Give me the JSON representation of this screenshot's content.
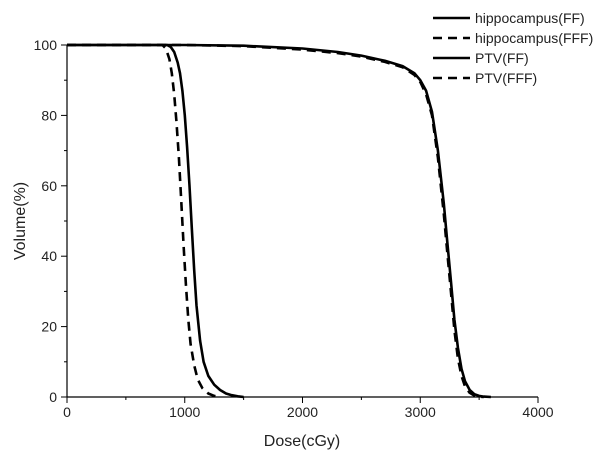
{
  "chart_data": {
    "type": "line",
    "title": "",
    "xlabel": "Dose(cGy)",
    "ylabel": "Volume(%)",
    "xlim": [
      0,
      4000
    ],
    "ylim": [
      0,
      100
    ],
    "xticks": [
      0,
      1000,
      2000,
      3000,
      4000
    ],
    "yticks": [
      0,
      20,
      40,
      60,
      80,
      100
    ],
    "x_tick_labels": [
      "0",
      "1000",
      "2000",
      "3000",
      "4000"
    ],
    "y_tick_labels": [
      "0",
      "20",
      "40",
      "60",
      "80",
      "100"
    ],
    "grid": false,
    "legend_position": "top-right-outside",
    "series": [
      {
        "name": "hippocampus(FF)",
        "dash": "solid",
        "x": [
          0,
          850,
          880,
          910,
          940,
          960,
          980,
          1000,
          1020,
          1040,
          1060,
          1080,
          1100,
          1130,
          1160,
          1200,
          1250,
          1300,
          1350,
          1400,
          1450,
          1500
        ],
        "y": [
          100,
          100,
          99.5,
          98,
          95,
          92,
          87,
          80,
          71,
          60,
          48,
          36,
          26,
          16,
          10,
          6,
          3.5,
          2,
          1,
          0.5,
          0.2,
          0
        ]
      },
      {
        "name": "hippocampus(FFF)",
        "dash": "dashed",
        "x": [
          0,
          810,
          840,
          870,
          890,
          910,
          930,
          950,
          970,
          990,
          1010,
          1030,
          1050,
          1080,
          1110,
          1150,
          1200,
          1250,
          1300
        ],
        "y": [
          100,
          100,
          99,
          96,
          92,
          86,
          78,
          68,
          56,
          43,
          32,
          22,
          15,
          9,
          5,
          2.5,
          1,
          0.3,
          0
        ]
      },
      {
        "name": "PTV(FF)",
        "dash": "solid",
        "x": [
          0,
          1000,
          1500,
          2000,
          2300,
          2500,
          2700,
          2850,
          2950,
          3000,
          3050,
          3100,
          3150,
          3200,
          3230,
          3260,
          3290,
          3320,
          3350,
          3380,
          3420,
          3460,
          3500,
          3540,
          3600
        ],
        "y": [
          100,
          100,
          99.8,
          99,
          98,
          97,
          95.5,
          94,
          92,
          90,
          87,
          81,
          70,
          55,
          44,
          33,
          22,
          14,
          8,
          4.5,
          2,
          0.8,
          0.3,
          0.1,
          0
        ]
      },
      {
        "name": "PTV(FFF)",
        "dash": "dashed",
        "x": [
          0,
          1000,
          1500,
          2000,
          2300,
          2500,
          2700,
          2850,
          2950,
          3000,
          3050,
          3100,
          3150,
          3200,
          3230,
          3260,
          3290,
          3320,
          3350,
          3380,
          3420,
          3460,
          3500,
          3540
        ],
        "y": [
          100,
          100,
          99.7,
          98.7,
          97.7,
          96.7,
          95.2,
          93.7,
          91.5,
          89.5,
          86,
          80,
          68,
          52,
          41,
          30,
          19,
          11,
          6,
          3,
          1.2,
          0.4,
          0.1,
          0
        ]
      }
    ]
  }
}
